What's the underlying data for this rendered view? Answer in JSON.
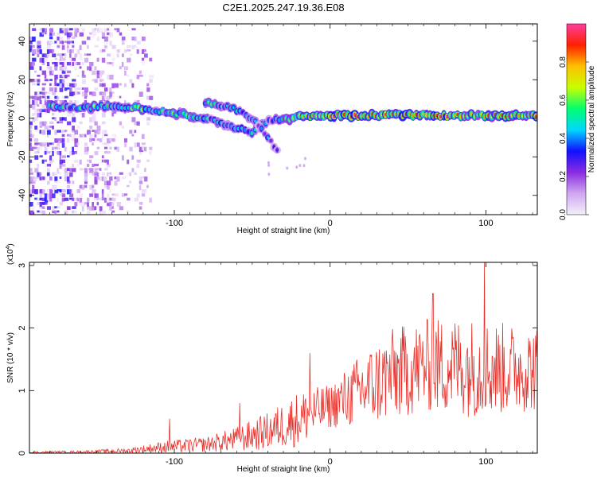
{
  "title": "C2E1.2025.247.19.36.E08",
  "chart_data": [
    {
      "type": "heatmap",
      "name": "spectrogram",
      "xlabel": "Height of straight line (km)",
      "ylabel": "Frequency (Hz)",
      "xlim": [
        -193,
        133
      ],
      "ylim": [
        -50,
        49
      ],
      "xticks": [
        -100,
        0,
        100
      ],
      "yticks": [
        -40,
        -20,
        0,
        20,
        40
      ],
      "colorbar": {
        "label": "Normalized spectral amplitude",
        "range": [
          0,
          1
        ],
        "ticks": [
          0.0,
          0.2,
          0.4,
          0.6,
          0.8
        ],
        "tick_labels": [
          "0.0",
          "0.2",
          "0.4",
          "0.6",
          "0.8"
        ],
        "colors": [
          "#f4f0fb",
          "#cfa8f0",
          "#8a2be2",
          "#1010ff",
          "#00d8ff",
          "#00ff70",
          "#c8ff00",
          "#ffc000",
          "#ff2000",
          "#ff3d9e"
        ]
      },
      "main_track": [
        {
          "x": -180,
          "f": 6,
          "a": 0.6
        },
        {
          "x": -170,
          "f": 5.5,
          "a": 0.45
        },
        {
          "x": -160,
          "f": 5,
          "a": 0.5
        },
        {
          "x": -150,
          "f": 6,
          "a": 0.55
        },
        {
          "x": -140,
          "f": 6.5,
          "a": 0.5
        },
        {
          "x": -130,
          "f": 6,
          "a": 0.55
        },
        {
          "x": -120,
          "f": 5,
          "a": 0.55
        },
        {
          "x": -110,
          "f": 3.5,
          "a": 0.5
        },
        {
          "x": -100,
          "f": 2.5,
          "a": 0.5
        },
        {
          "x": -90,
          "f": 1.5,
          "a": 0.5
        },
        {
          "x": -80,
          "f": 0,
          "a": 0.45
        },
        {
          "x": -70,
          "f": -2.5,
          "a": 0.45
        },
        {
          "x": -60,
          "f": -5,
          "a": 0.45
        },
        {
          "x": -50,
          "f": -7,
          "a": 0.4
        },
        {
          "x": -42,
          "f": -2,
          "a": 0.4
        },
        {
          "x": -35,
          "f": -1,
          "a": 0.45
        },
        {
          "x": -25,
          "f": 0,
          "a": 0.55
        },
        {
          "x": -15,
          "f": 1.5,
          "a": 0.7
        },
        {
          "x": 0,
          "f": 1.5,
          "a": 0.85
        },
        {
          "x": 20,
          "f": 1.5,
          "a": 0.85
        },
        {
          "x": 40,
          "f": 1.5,
          "a": 0.85
        },
        {
          "x": 60,
          "f": 1.5,
          "a": 0.85
        },
        {
          "x": 80,
          "f": 1.5,
          "a": 0.8
        },
        {
          "x": 95,
          "f": 1.5,
          "a": 0.7
        },
        {
          "x": 110,
          "f": 1.5,
          "a": 0.8
        },
        {
          "x": 133,
          "f": 1.5,
          "a": 0.8
        }
      ],
      "secondary_track": [
        {
          "x": -80,
          "f": 8,
          "a": 0.5
        },
        {
          "x": -65,
          "f": 6,
          "a": 0.45
        },
        {
          "x": -55,
          "f": 2,
          "a": 0.4
        },
        {
          "x": -45,
          "f": -4,
          "a": 0.35
        },
        {
          "x": -38,
          "f": -12,
          "a": 0.3
        },
        {
          "x": -33,
          "f": -18,
          "a": 0.2
        }
      ]
    },
    {
      "type": "line",
      "name": "snr",
      "xlabel": "Height of straight line (km)",
      "ylabel": "SNR (10 * v/v)",
      "yscale_label": "(x10",
      "yscale_exp": "4",
      "yscale_close": ")",
      "xlim": [
        -193,
        133
      ],
      "ylim": [
        0,
        3.05
      ],
      "xticks": [
        -100,
        0,
        100
      ],
      "yticks": [
        0,
        1,
        2,
        3
      ],
      "line_color": "#e8302a",
      "envelope": [
        {
          "x": -193,
          "mean": 0.01,
          "amp": 0.02
        },
        {
          "x": -160,
          "mean": 0.02,
          "amp": 0.02
        },
        {
          "x": -130,
          "mean": 0.04,
          "amp": 0.04
        },
        {
          "x": -105,
          "mean": 0.1,
          "amp": 0.1
        },
        {
          "x": -80,
          "mean": 0.14,
          "amp": 0.12
        },
        {
          "x": -60,
          "mean": 0.22,
          "amp": 0.2
        },
        {
          "x": -40,
          "mean": 0.35,
          "amp": 0.3
        },
        {
          "x": -20,
          "mean": 0.55,
          "amp": 0.45
        },
        {
          "x": 0,
          "mean": 0.75,
          "amp": 0.35
        },
        {
          "x": 20,
          "mean": 1.0,
          "amp": 0.6
        },
        {
          "x": 40,
          "mean": 1.25,
          "amp": 0.75
        },
        {
          "x": 60,
          "mean": 1.4,
          "amp": 0.75
        },
        {
          "x": 80,
          "mean": 1.4,
          "amp": 0.8
        },
        {
          "x": 100,
          "mean": 1.35,
          "amp": 0.8
        },
        {
          "x": 120,
          "mean": 1.35,
          "amp": 0.7
        },
        {
          "x": 133,
          "mean": 1.35,
          "amp": 0.7
        }
      ],
      "peaks": [
        {
          "x": -103,
          "y": 0.55
        },
        {
          "x": -58,
          "y": 0.8
        },
        {
          "x": -13,
          "y": 1.6
        },
        {
          "x": 66,
          "y": 2.55
        },
        {
          "x": 99,
          "y": 3.05
        }
      ]
    }
  ]
}
